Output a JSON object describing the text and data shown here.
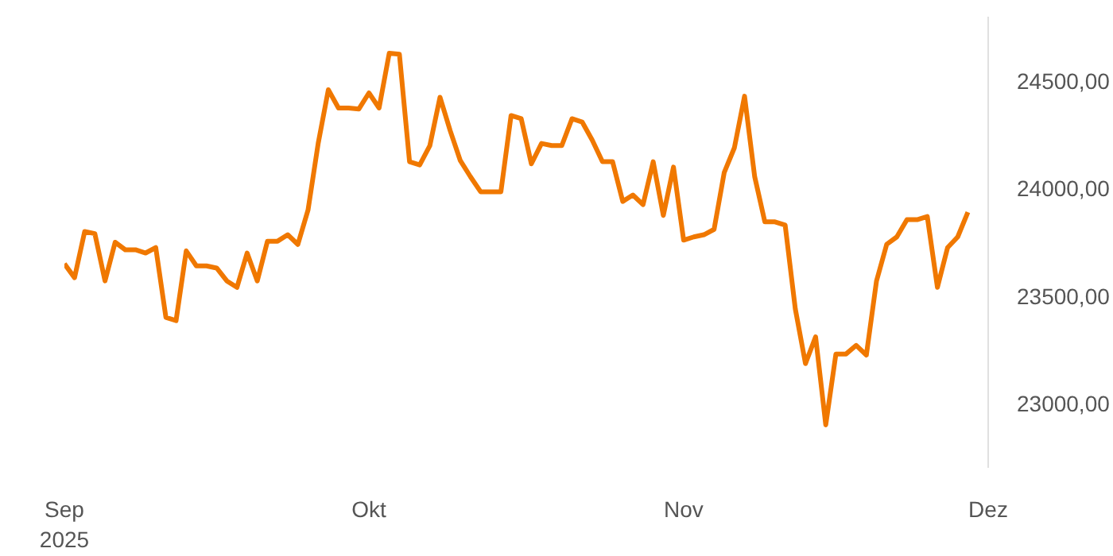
{
  "chart_data": {
    "type": "line",
    "x": [
      "2025-09-01",
      "2025-09-02",
      "2025-09-03",
      "2025-09-04",
      "2025-09-05",
      "2025-09-06",
      "2025-09-07",
      "2025-09-08",
      "2025-09-09",
      "2025-09-10",
      "2025-09-11",
      "2025-09-12",
      "2025-09-13",
      "2025-09-14",
      "2025-09-15",
      "2025-09-16",
      "2025-09-17",
      "2025-09-18",
      "2025-09-19",
      "2025-09-20",
      "2025-09-21",
      "2025-09-22",
      "2025-09-23",
      "2025-09-24",
      "2025-09-25",
      "2025-09-26",
      "2025-09-27",
      "2025-09-28",
      "2025-09-29",
      "2025-09-30",
      "2025-10-01",
      "2025-10-02",
      "2025-10-03",
      "2025-10-04",
      "2025-10-05",
      "2025-10-06",
      "2025-10-07",
      "2025-10-08",
      "2025-10-09",
      "2025-10-10",
      "2025-10-11",
      "2025-10-12",
      "2025-10-13",
      "2025-10-14",
      "2025-10-15",
      "2025-10-16",
      "2025-10-17",
      "2025-10-18",
      "2025-10-19",
      "2025-10-20",
      "2025-10-21",
      "2025-10-22",
      "2025-10-23",
      "2025-10-24",
      "2025-10-25",
      "2025-10-26",
      "2025-10-27",
      "2025-10-28",
      "2025-10-29",
      "2025-10-30",
      "2025-10-31",
      "2025-11-01",
      "2025-11-02",
      "2025-11-03",
      "2025-11-04",
      "2025-11-05",
      "2025-11-06",
      "2025-11-07",
      "2025-11-08",
      "2025-11-09",
      "2025-11-10",
      "2025-11-11",
      "2025-11-12",
      "2025-11-13",
      "2025-11-14",
      "2025-11-15",
      "2025-11-16",
      "2025-11-17",
      "2025-11-18",
      "2025-11-19",
      "2025-11-20",
      "2025-11-21",
      "2025-11-22",
      "2025-11-23",
      "2025-11-24",
      "2025-11-25",
      "2025-11-26",
      "2025-11-27",
      "2025-11-28",
      "2025-11-29"
    ],
    "series": [
      {
        "color": "#f07800",
        "values": [
          23650,
          23585,
          23800,
          23790,
          23570,
          23750,
          23715,
          23715,
          23700,
          23725,
          23400,
          23385,
          23710,
          23640,
          23640,
          23630,
          23570,
          23540,
          23700,
          23570,
          23755,
          23755,
          23785,
          23740,
          23900,
          24210,
          24460,
          24375,
          24375,
          24370,
          24445,
          24375,
          24630,
          24625,
          24125,
          24110,
          24200,
          24425,
          24270,
          24130,
          24055,
          23985,
          23985,
          23985,
          24340,
          24325,
          24115,
          24210,
          24200,
          24200,
          24325,
          24310,
          24225,
          24125,
          24125,
          23940,
          23970,
          23925,
          24125,
          23875,
          24100,
          23760,
          23775,
          23785,
          23810,
          24075,
          24190,
          24430,
          24055,
          23845,
          23845,
          23830,
          23440,
          23185,
          23310,
          22900,
          23230,
          23230,
          23270,
          23225,
          23570,
          23740,
          23775,
          23855,
          23855,
          23870,
          23540,
          23725,
          23775,
          23890
        ]
      }
    ],
    "xlim": [
      "2025-09-01",
      "2025-12-01"
    ],
    "xticks": [
      {
        "value": "2025-09-01",
        "label": "Sep\n2025"
      },
      {
        "value": "2025-10-01",
        "label": "Okt"
      },
      {
        "value": "2025-11-01",
        "label": "Nov"
      },
      {
        "value": "2025-12-01",
        "label": "Dez"
      }
    ],
    "ylim": [
      22700,
      24800
    ],
    "yticks": [
      {
        "value": 23000,
        "label": "23000,00"
      },
      {
        "value": 23500,
        "label": "23500,00"
      },
      {
        "value": 24000,
        "label": "24000,00"
      },
      {
        "value": 24500,
        "label": "24500,00"
      }
    ],
    "grid": false,
    "line_style": "solid"
  }
}
